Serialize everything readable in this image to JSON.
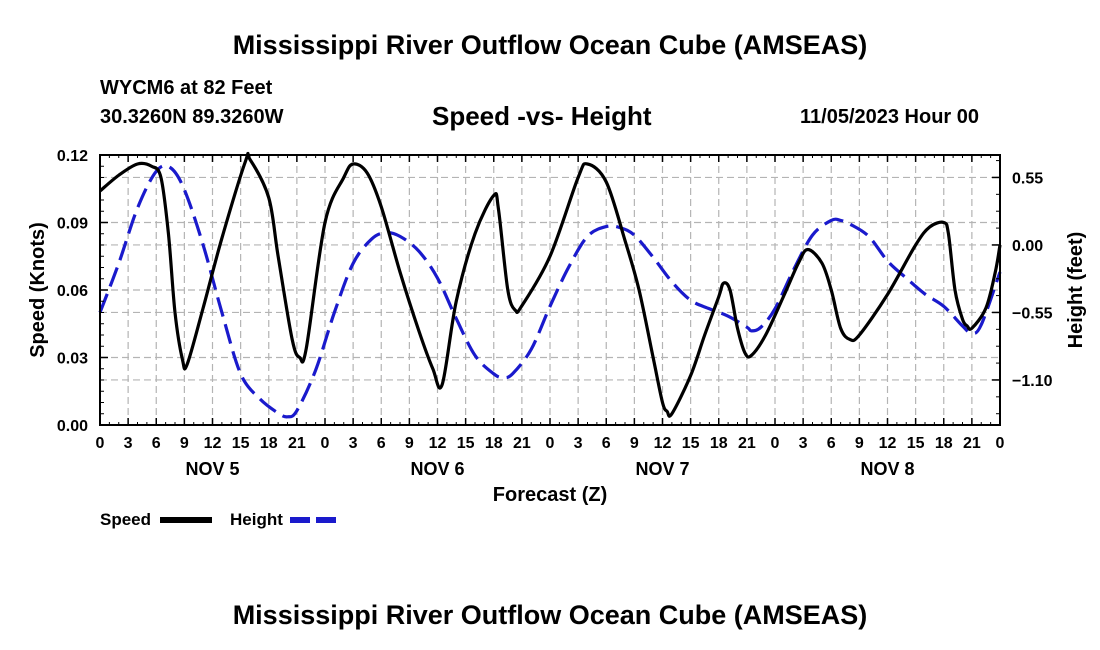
{
  "header": {
    "title": "Mississippi River Outflow Ocean Cube (AMSEAS)",
    "station": "WYCM6 at 82 Feet",
    "coords": "30.3260N  89.3260W",
    "subtitle": "Speed -vs- Height",
    "datetime": "11/05/2023 Hour 00"
  },
  "footer": {
    "title": "Mississippi River Outflow Ocean Cube (AMSEAS)"
  },
  "legend": {
    "speed_label": "Speed",
    "height_label": "Height"
  },
  "colors": {
    "speed": "#000000",
    "height": "#1a1acc",
    "grid": "#b4b4b4"
  },
  "chart_data": {
    "type": "line",
    "title": "Speed -vs- Height",
    "xlabel": "Forecast (Z)",
    "ylabel": "Speed (Knots)",
    "y2label": "Height (feet)",
    "xlim": [
      0,
      96
    ],
    "ylim": [
      0,
      0.12
    ],
    "y2lim": [
      -1.467,
      0.733
    ],
    "yticks": [
      0,
      0.03,
      0.06,
      0.09,
      0.12
    ],
    "ytick_labels": [
      "0.00",
      "0.03",
      "0.06",
      "0.09",
      "0.12"
    ],
    "y2ticks": [
      0.55,
      0,
      -0.55,
      -1.1
    ],
    "y2tick_labels": [
      "0.55",
      "0.00",
      "−0.55",
      "−1.10"
    ],
    "xticks": [
      0,
      3,
      6,
      9,
      12,
      15,
      18,
      21,
      24,
      27,
      30,
      33,
      36,
      39,
      42,
      45,
      48,
      51,
      54,
      57,
      60,
      63,
      66,
      69,
      72,
      75,
      78,
      81,
      84,
      87,
      90,
      93,
      96
    ],
    "xtick_labels": [
      "0",
      "3",
      "6",
      "9",
      "12",
      "15",
      "18",
      "21",
      "0",
      "3",
      "6",
      "9",
      "12",
      "15",
      "18",
      "21",
      "0",
      "3",
      "6",
      "9",
      "12",
      "15",
      "18",
      "21",
      "0",
      "3",
      "6",
      "9",
      "12",
      "15",
      "18",
      "21",
      "0"
    ],
    "day_labels": [
      {
        "x": 12,
        "label": "NOV 5"
      },
      {
        "x": 36,
        "label": "NOV 6"
      },
      {
        "x": 60,
        "label": "NOV 7"
      },
      {
        "x": 84,
        "label": "NOV 8"
      }
    ],
    "series": [
      {
        "name": "Speed",
        "axis": "left",
        "style": "solid",
        "points": [
          [
            0,
            0.104
          ],
          [
            2,
            0.111
          ],
          [
            4,
            0.116
          ],
          [
            5.5,
            0.115
          ],
          [
            6.5,
            0.11
          ],
          [
            7.3,
            0.085
          ],
          [
            8,
            0.05
          ],
          [
            8.8,
            0.029
          ],
          [
            9.3,
            0.027
          ],
          [
            11,
            0.052
          ],
          [
            13,
            0.083
          ],
          [
            15.5,
            0.117
          ],
          [
            16,
            0.118
          ],
          [
            18,
            0.101
          ],
          [
            19,
            0.075
          ],
          [
            20.5,
            0.038
          ],
          [
            21.3,
            0.03
          ],
          [
            22,
            0.034
          ],
          [
            24,
            0.09
          ],
          [
            26,
            0.11
          ],
          [
            27,
            0.116
          ],
          [
            28.5,
            0.112
          ],
          [
            30,
            0.097
          ],
          [
            32,
            0.068
          ],
          [
            34,
            0.042
          ],
          [
            35.5,
            0.025
          ],
          [
            36.5,
            0.018
          ],
          [
            38,
            0.055
          ],
          [
            40,
            0.085
          ],
          [
            42,
            0.102
          ],
          [
            42.5,
            0.096
          ],
          [
            43.5,
            0.06
          ],
          [
            44.3,
            0.051
          ],
          [
            45,
            0.053
          ],
          [
            48,
            0.075
          ],
          [
            51,
            0.11
          ],
          [
            52,
            0.116
          ],
          [
            54,
            0.108
          ],
          [
            56,
            0.082
          ],
          [
            57.5,
            0.06
          ],
          [
            59,
            0.03
          ],
          [
            60,
            0.01
          ],
          [
            60.5,
            0.006
          ],
          [
            61,
            0.005
          ],
          [
            63,
            0.022
          ],
          [
            64.5,
            0.04
          ],
          [
            66,
            0.057
          ],
          [
            66.5,
            0.063
          ],
          [
            67.2,
            0.06
          ],
          [
            68,
            0.043
          ],
          [
            68.8,
            0.032
          ],
          [
            69.5,
            0.031
          ],
          [
            71,
            0.04
          ],
          [
            73,
            0.058
          ],
          [
            74.5,
            0.072
          ],
          [
            75.5,
            0.078
          ],
          [
            77,
            0.072
          ],
          [
            78,
            0.06
          ],
          [
            79,
            0.043
          ],
          [
            80,
            0.038
          ],
          [
            81,
            0.04
          ],
          [
            84,
            0.058
          ],
          [
            87,
            0.08
          ],
          [
            88.5,
            0.088
          ],
          [
            90,
            0.09
          ],
          [
            90.5,
            0.085
          ],
          [
            91.2,
            0.06
          ],
          [
            92,
            0.047
          ],
          [
            92.5,
            0.044
          ],
          [
            93,
            0.043
          ],
          [
            94.5,
            0.052
          ],
          [
            95.5,
            0.068
          ],
          [
            96,
            0.08
          ]
        ]
      },
      {
        "name": "Height",
        "axis": "right",
        "style": "dashed",
        "points": [
          [
            0,
            -0.55
          ],
          [
            2,
            -0.15
          ],
          [
            4,
            0.3
          ],
          [
            6,
            0.6
          ],
          [
            7.5,
            0.63
          ],
          [
            9,
            0.45
          ],
          [
            11,
            0.0
          ],
          [
            13,
            -0.55
          ],
          [
            15,
            -1.05
          ],
          [
            17,
            -1.25
          ],
          [
            19,
            -1.37
          ],
          [
            20,
            -1.4
          ],
          [
            21,
            -1.35
          ],
          [
            23,
            -1.02
          ],
          [
            25,
            -0.55
          ],
          [
            27,
            -0.15
          ],
          [
            29,
            0.05
          ],
          [
            30.5,
            0.1
          ],
          [
            32,
            0.07
          ],
          [
            34,
            -0.05
          ],
          [
            36,
            -0.27
          ],
          [
            38,
            -0.6
          ],
          [
            40,
            -0.9
          ],
          [
            42,
            -1.05
          ],
          [
            43,
            -1.08
          ],
          [
            44,
            -1.05
          ],
          [
            46,
            -0.85
          ],
          [
            48,
            -0.5
          ],
          [
            50,
            -0.18
          ],
          [
            52,
            0.07
          ],
          [
            54,
            0.15
          ],
          [
            55.5,
            0.14
          ],
          [
            57,
            0.08
          ],
          [
            59,
            -0.1
          ],
          [
            61,
            -0.3
          ],
          [
            63,
            -0.45
          ],
          [
            65,
            -0.52
          ],
          [
            67,
            -0.58
          ],
          [
            69,
            -0.67
          ],
          [
            69.5,
            -0.7
          ],
          [
            70.5,
            -0.67
          ],
          [
            72,
            -0.52
          ],
          [
            74,
            -0.2
          ],
          [
            76,
            0.08
          ],
          [
            78,
            0.2
          ],
          [
            79,
            0.2
          ],
          [
            80,
            0.17
          ],
          [
            82,
            0.07
          ],
          [
            84,
            -0.13
          ],
          [
            86,
            -0.27
          ],
          [
            88,
            -0.4
          ],
          [
            90,
            -0.5
          ],
          [
            92,
            -0.66
          ],
          [
            93,
            -0.72
          ],
          [
            94,
            -0.65
          ],
          [
            96,
            -0.22
          ]
        ]
      }
    ]
  }
}
